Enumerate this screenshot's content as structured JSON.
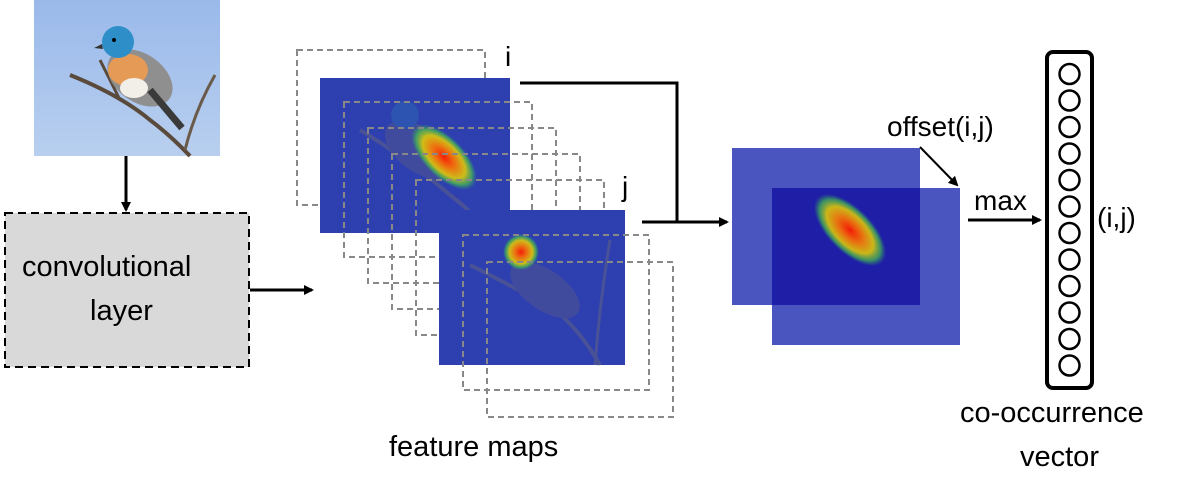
{
  "labels": {
    "conv_layer_line1": "convolutional",
    "conv_layer_line2": "layer",
    "feature_maps": "feature maps",
    "index_i": "i",
    "index_j": "j",
    "offset": "offset(i,j)",
    "max": "max",
    "ij": "(i,j)",
    "vector_line1": "co-occurrence",
    "vector_line2": "vector"
  },
  "colors": {
    "map_blue": "#2e3fb0",
    "map_blue_light": "#4b55bf",
    "map_blue_dark": "#1f1ea6",
    "sky": "#a9c4ec",
    "conv_box_fill": "#d9d9d9",
    "dashed_frame": "#888888"
  },
  "vector_cells": 12
}
